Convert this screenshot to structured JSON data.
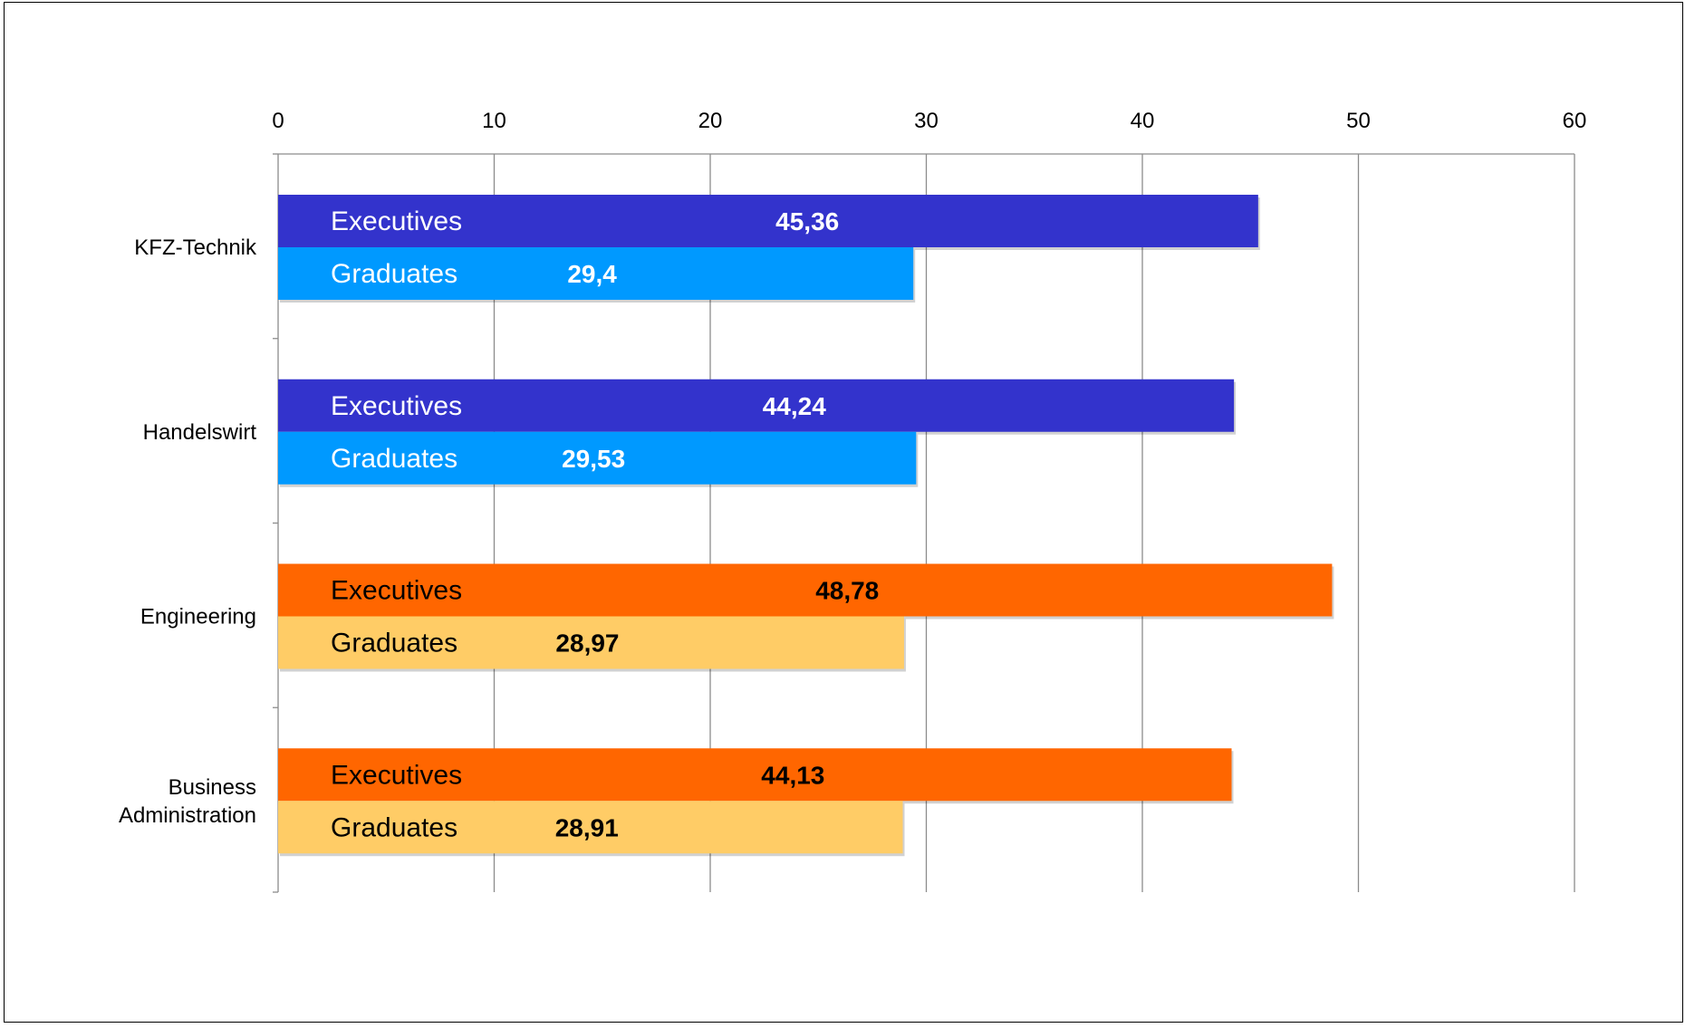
{
  "chart_data": {
    "type": "bar",
    "orientation": "horizontal",
    "title": "",
    "xlabel": "",
    "ylabel": "",
    "xlim": [
      0,
      60
    ],
    "x_ticks": [
      0,
      10,
      20,
      30,
      40,
      50,
      60
    ],
    "grid": true,
    "legend": "none",
    "categories": [
      {
        "label_lines": [
          "KFZ-Technik"
        ]
      },
      {
        "label_lines": [
          "Handelswirt"
        ]
      },
      {
        "label_lines": [
          "Engineering"
        ]
      },
      {
        "label_lines": [
          "Business",
          "Administration"
        ]
      }
    ],
    "bars": [
      {
        "category": 0,
        "series": "Executives",
        "value": 45.36,
        "value_label": "45,36",
        "color": "#3333cc",
        "label_color": "#ffffff"
      },
      {
        "category": 0,
        "series": "Graduates",
        "value": 29.4,
        "value_label": "29,4",
        "color": "#0099ff",
        "label_color": "#ffffff"
      },
      {
        "category": 1,
        "series": "Executives",
        "value": 44.24,
        "value_label": "44,24",
        "color": "#3333cc",
        "label_color": "#ffffff"
      },
      {
        "category": 1,
        "series": "Graduates",
        "value": 29.53,
        "value_label": "29,53",
        "color": "#0099ff",
        "label_color": "#ffffff"
      },
      {
        "category": 2,
        "series": "Executives",
        "value": 48.78,
        "value_label": "48,78",
        "color": "#ff6600",
        "label_color": "#000000"
      },
      {
        "category": 2,
        "series": "Graduates",
        "value": 28.97,
        "value_label": "28,97",
        "color": "#ffcc66",
        "label_color": "#000000"
      },
      {
        "category": 3,
        "series": "Executives",
        "value": 44.13,
        "value_label": "44,13",
        "color": "#ff6600",
        "label_color": "#000000"
      },
      {
        "category": 3,
        "series": "Graduates",
        "value": 28.91,
        "value_label": "28,91",
        "color": "#ffcc66",
        "label_color": "#000000"
      }
    ],
    "colors": {
      "grid": "#8c8c8c",
      "axis_text": "#000000"
    }
  }
}
